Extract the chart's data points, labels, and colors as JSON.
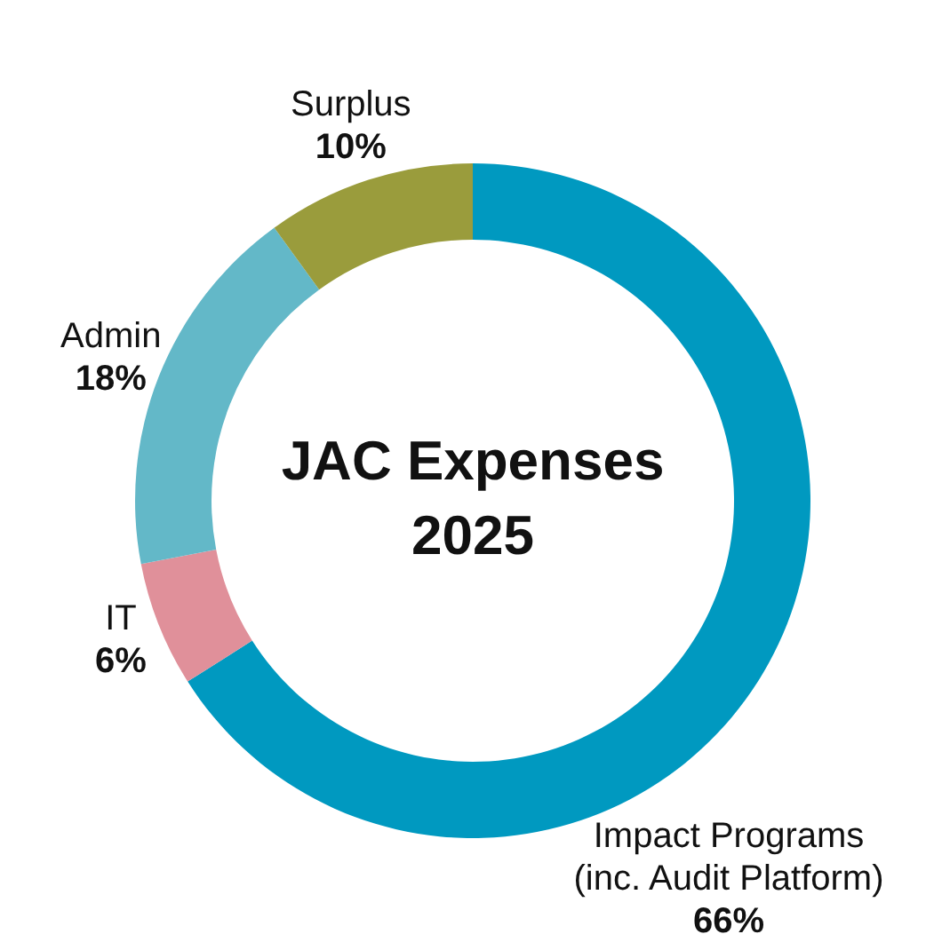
{
  "chart_data": {
    "type": "donut",
    "title": "JAC Expenses 2025",
    "categories": [
      "Impact Programs (inc. Audit Platform)",
      "IT",
      "Admin",
      "Surplus"
    ],
    "values": [
      66,
      6,
      18,
      10
    ],
    "value_labels": [
      "66%",
      "6%",
      "18%",
      "10%"
    ],
    "colors": [
      "#0099c0",
      "#e0909a",
      "#63b8c8",
      "#9a9c3c"
    ]
  }
}
